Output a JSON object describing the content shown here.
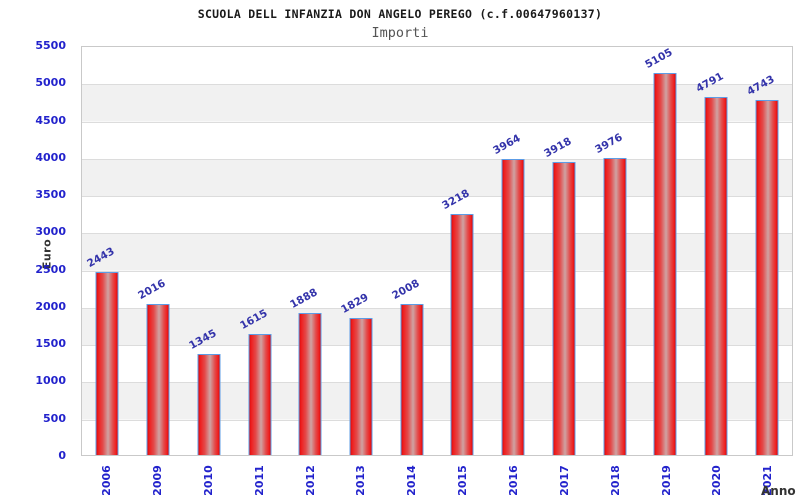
{
  "chart_data": {
    "type": "bar",
    "title": "SCUOLA DELL INFANZIA DON ANGELO PEREGO (c.f.00647960137)",
    "subtitle": "Importi",
    "xlabel": "Anno",
    "ylabel": "Euro",
    "categories": [
      "2006",
      "2009",
      "2010",
      "2011",
      "2012",
      "2013",
      "2014",
      "2015",
      "2016",
      "2017",
      "2018",
      "2019",
      "2020",
      "2021"
    ],
    "values": [
      2443,
      2016,
      1345,
      1615,
      1888,
      1829,
      2008,
      3218,
      3964,
      3918,
      3976,
      5105,
      4791,
      4743
    ],
    "ylim": [
      0,
      5500
    ],
    "ytick_step": 500,
    "yticks": [
      0,
      500,
      1000,
      1500,
      2000,
      2500,
      3000,
      3500,
      4000,
      4500,
      5000,
      5500
    ],
    "grid": true,
    "legend": false,
    "layout": {
      "band_pattern": "alternating white/gray horizontal bands every 500 units, white at top"
    },
    "colors": {
      "bar_fill_edge": "#e00a0a",
      "bar_fill_center": "#cfa3a3",
      "bar_border": "#5c9ce6",
      "tick_label": "#2222cc",
      "value_label": "#3333aa",
      "band_gray": "#f1f1f1",
      "gridline": "#dcdcdc",
      "plot_border": "#c9c9c9",
      "title_color": "#1a1a1a",
      "subtitle_color": "#555555",
      "axis_title_color": "#333333",
      "background": "#ffffff"
    }
  }
}
